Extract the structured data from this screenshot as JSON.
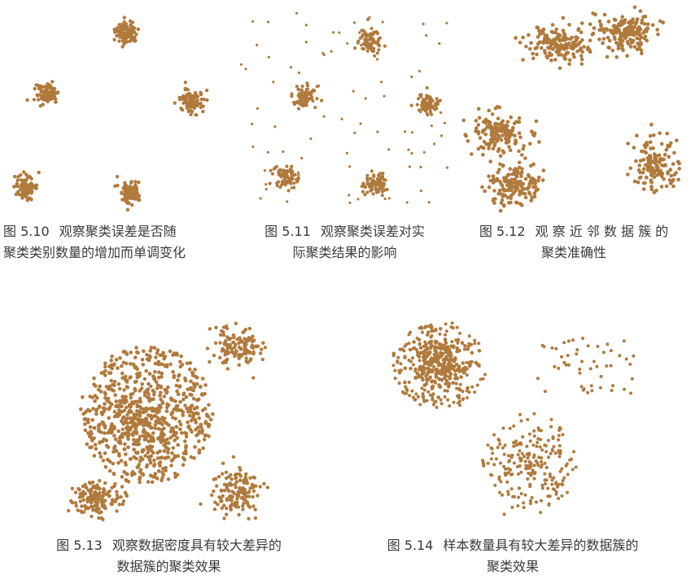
{
  "dot_color": "#b07a3c",
  "figures": [
    {
      "id": "fig510",
      "number": "图 5.10",
      "caption_line1": "观察聚类误差是否随",
      "caption_line2": "聚类类别数量的增加而单调变化"
    },
    {
      "id": "fig511",
      "number": "图 5.11",
      "caption_line1": "观察聚类误差对实",
      "caption_line2": "际聚类结果的影响"
    },
    {
      "id": "fig512",
      "number": "图 5.12",
      "caption_line1": "观 察 近 邻 数 据 簇 的",
      "caption_line2": "聚类准确性"
    },
    {
      "id": "fig513",
      "number": "图 5.13",
      "caption_line1": "观察数据密度具有较大差异的",
      "caption_line2": "数据簇的聚类效果"
    },
    {
      "id": "fig514",
      "number": "图 5.14",
      "caption_line1": "样本数量具有较大差异的数据簇的",
      "caption_line2": "聚类效果"
    }
  ]
}
